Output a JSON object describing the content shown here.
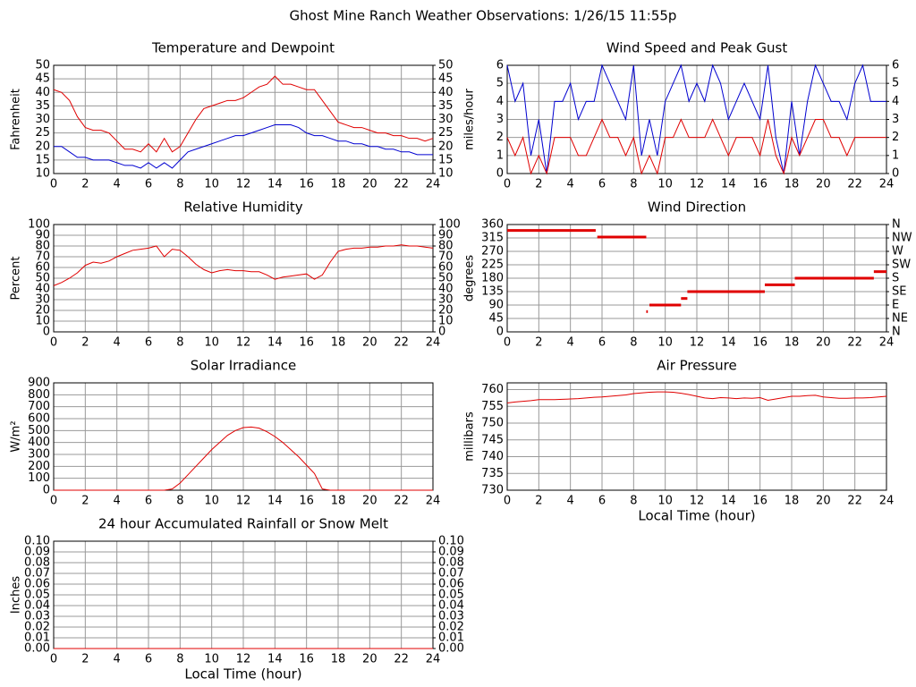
{
  "title": "Ghost Mine Ranch Weather Observations: 1/26/15 11:55p",
  "chart_data": [
    {
      "type": "line",
      "title": "Temperature and Dewpoint",
      "ylabel": "Fahrenheit",
      "grid": true,
      "x": [
        0,
        0.5,
        1,
        1.5,
        2,
        2.5,
        3,
        3.5,
        4,
        4.5,
        5,
        5.5,
        6,
        6.5,
        7,
        7.5,
        8,
        8.5,
        9,
        9.5,
        10,
        10.5,
        11,
        11.5,
        12,
        12.5,
        13,
        13.5,
        14,
        14.5,
        15,
        15.5,
        16,
        16.5,
        17,
        17.5,
        18,
        18.5,
        19,
        19.5,
        20,
        20.5,
        21,
        21.5,
        22,
        22.5,
        23,
        23.5,
        24
      ],
      "series": [
        {
          "color": "#e00000",
          "values": [
            41,
            40,
            37,
            31,
            27,
            26,
            26,
            25,
            22,
            19,
            19,
            18,
            21,
            18,
            23,
            18,
            20,
            25,
            30,
            34,
            35,
            36,
            37,
            37,
            38,
            40,
            42,
            43,
            46,
            43,
            43,
            42,
            41,
            41,
            37,
            33,
            29,
            28,
            27,
            27,
            26,
            25,
            25,
            24,
            24,
            23,
            23,
            22,
            23
          ]
        },
        {
          "color": "#0000d0",
          "values": [
            20,
            20,
            18,
            16,
            16,
            15,
            15,
            15,
            14,
            13,
            13,
            12,
            14,
            12,
            14,
            12,
            15,
            18,
            19,
            20,
            21,
            22,
            23,
            24,
            24,
            25,
            26,
            27,
            28,
            28,
            28,
            27,
            25,
            24,
            24,
            23,
            22,
            22,
            21,
            21,
            20,
            20,
            19,
            19,
            18,
            18,
            17,
            17,
            17
          ]
        }
      ],
      "xlim": [
        0,
        24
      ],
      "xticks": [
        0,
        2,
        4,
        6,
        8,
        10,
        12,
        14,
        16,
        18,
        20,
        22,
        24
      ],
      "ylim": [
        10,
        50
      ],
      "yticks": [
        10,
        15,
        20,
        25,
        30,
        35,
        40,
        45,
        50
      ],
      "y2lim": [
        10,
        50
      ],
      "y2ticks": [
        10,
        15,
        20,
        25,
        30,
        35,
        40,
        45,
        50
      ]
    },
    {
      "type": "line",
      "title": "Wind Speed and Peak Gust",
      "ylabel": "miles/hour",
      "grid": true,
      "x": [
        0,
        0.5,
        1,
        1.5,
        2,
        2.5,
        3,
        3.5,
        4,
        4.5,
        5,
        5.5,
        6,
        6.5,
        7,
        7.5,
        8,
        8.5,
        9,
        9.5,
        10,
        10.5,
        11,
        11.5,
        12,
        12.5,
        13,
        13.5,
        14,
        14.5,
        15,
        15.5,
        16,
        16.5,
        17,
        17.5,
        18,
        18.5,
        19,
        19.5,
        20,
        20.5,
        21,
        21.5,
        22,
        22.5,
        23,
        23.5,
        24
      ],
      "series": [
        {
          "color": "#0000d0",
          "values": [
            6,
            4,
            5,
            1,
            3,
            0,
            4,
            4,
            5,
            3,
            4,
            4,
            6,
            5,
            4,
            3,
            6,
            1,
            3,
            1,
            4,
            5,
            6,
            4,
            5,
            4,
            6,
            5,
            3,
            4,
            5,
            4,
            3,
            6,
            2,
            0,
            4,
            1,
            4,
            6,
            5,
            4,
            4,
            3,
            5,
            6,
            4,
            4,
            4
          ]
        },
        {
          "color": "#e00000",
          "values": [
            2,
            1,
            2,
            0,
            1,
            0,
            2,
            2,
            2,
            1,
            1,
            2,
            3,
            2,
            2,
            1,
            2,
            0,
            1,
            0,
            2,
            2,
            3,
            2,
            2,
            2,
            3,
            2,
            1,
            2,
            2,
            2,
            1,
            3,
            1,
            0,
            2,
            1,
            2,
            3,
            3,
            2,
            2,
            1,
            2,
            2,
            2,
            2,
            2
          ]
        }
      ],
      "xlim": [
        0,
        24
      ],
      "xticks": [
        0,
        2,
        4,
        6,
        8,
        10,
        12,
        14,
        16,
        18,
        20,
        22,
        24
      ],
      "ylim": [
        0,
        6
      ],
      "yticks": [
        0,
        1,
        2,
        3,
        4,
        5,
        6
      ],
      "y2lim": [
        0,
        6
      ],
      "y2ticks": [
        0,
        1,
        2,
        3,
        4,
        5,
        6
      ]
    },
    {
      "type": "line",
      "title": "Relative Humidity",
      "ylabel": "Percent",
      "grid": true,
      "x": [
        0,
        0.5,
        1,
        1.5,
        2,
        2.5,
        3,
        3.5,
        4,
        4.5,
        5,
        5.5,
        6,
        6.5,
        7,
        7.5,
        8,
        8.5,
        9,
        9.5,
        10,
        10.5,
        11,
        11.5,
        12,
        12.5,
        13,
        13.5,
        14,
        14.5,
        15,
        15.5,
        16,
        16.5,
        17,
        17.5,
        18,
        18.5,
        19,
        19.5,
        20,
        20.5,
        21,
        21.5,
        22,
        22.5,
        23,
        23.5,
        24
      ],
      "series": [
        {
          "color": "#e00000",
          "values": [
            43,
            46,
            50,
            55,
            62,
            65,
            64,
            66,
            70,
            73,
            76,
            77,
            78,
            80,
            70,
            77,
            76,
            70,
            63,
            58,
            55,
            57,
            58,
            57,
            57,
            56,
            56,
            53,
            49,
            51,
            52,
            53,
            54,
            49,
            53,
            65,
            75,
            77,
            78,
            78,
            79,
            79,
            80,
            80,
            81,
            80,
            80,
            79,
            78
          ]
        }
      ],
      "xlim": [
        0,
        24
      ],
      "xticks": [
        0,
        2,
        4,
        6,
        8,
        10,
        12,
        14,
        16,
        18,
        20,
        22,
        24
      ],
      "ylim": [
        0,
        100
      ],
      "yticks": [
        0,
        10,
        20,
        30,
        40,
        50,
        60,
        70,
        80,
        90,
        100
      ],
      "y2lim": [
        0,
        100
      ],
      "y2ticks": [
        0,
        10,
        20,
        30,
        40,
        50,
        60,
        70,
        80,
        90,
        100
      ]
    },
    {
      "type": "segments",
      "title": "Wind Direction",
      "ylabel": "degrees",
      "grid": true,
      "series": [
        {
          "color": "#e00000",
          "x_start": [
            0,
            5.7,
            8.8,
            9.0,
            11.0,
            11.4,
            16.3,
            18.2,
            23.2
          ],
          "x_end": [
            5.6,
            8.8,
            8.9,
            11.0,
            11.4,
            16.3,
            18.2,
            23.2,
            24
          ],
          "values": [
            340,
            318,
            68,
            90,
            112,
            135,
            158,
            180,
            202
          ]
        }
      ],
      "xlim": [
        0,
        24
      ],
      "xticks": [
        0,
        2,
        4,
        6,
        8,
        10,
        12,
        14,
        16,
        18,
        20,
        22,
        24
      ],
      "ylim": [
        0,
        360
      ],
      "yticks": [
        0,
        45,
        90,
        135,
        180,
        225,
        270,
        315,
        360
      ],
      "y2lim": [
        0,
        360
      ],
      "y2ticks": [
        {
          "value": 360,
          "label": "N"
        },
        {
          "value": 315,
          "label": "NW"
        },
        {
          "value": 270,
          "label": "W"
        },
        {
          "value": 225,
          "label": "SW"
        },
        {
          "value": 180,
          "label": "S"
        },
        {
          "value": 135,
          "label": "SE"
        },
        {
          "value": 90,
          "label": "E"
        },
        {
          "value": 45,
          "label": "NE"
        },
        {
          "value": 0,
          "label": "N"
        }
      ]
    },
    {
      "type": "line",
      "title": "Solar Irradiance",
      "ylabel": "W/m²",
      "grid": true,
      "x": [
        0,
        0.5,
        1,
        1.5,
        2,
        2.5,
        3,
        3.5,
        4,
        4.5,
        5,
        5.5,
        6,
        6.5,
        7,
        7.5,
        8,
        8.5,
        9,
        9.5,
        10,
        10.5,
        11,
        11.5,
        12,
        12.5,
        13,
        13.5,
        14,
        14.5,
        15,
        15.5,
        16,
        16.5,
        17,
        17.5,
        18,
        18.5,
        19,
        19.5,
        20,
        20.5,
        21,
        21.5,
        22,
        22.5,
        23,
        23.5,
        24
      ],
      "series": [
        {
          "color": "#e00000",
          "values": [
            0,
            0,
            0,
            0,
            0,
            0,
            0,
            0,
            0,
            0,
            0,
            0,
            0,
            0,
            0,
            10,
            60,
            130,
            200,
            270,
            340,
            400,
            460,
            500,
            525,
            530,
            520,
            490,
            450,
            400,
            340,
            280,
            210,
            140,
            10,
            0,
            0,
            0,
            0,
            0,
            0,
            0,
            0,
            0,
            0,
            0,
            0,
            0,
            0
          ]
        }
      ],
      "xlim": [
        0,
        24
      ],
      "xticks": [
        0,
        2,
        4,
        6,
        8,
        10,
        12,
        14,
        16,
        18,
        20,
        22,
        24
      ],
      "ylim": [
        0,
        900
      ],
      "yticks": [
        0,
        100,
        200,
        300,
        400,
        500,
        600,
        700,
        800,
        900
      ]
    },
    {
      "type": "line",
      "title": "Air Pressure",
      "ylabel": "millibars",
      "xlabel": "Local Time (hour)",
      "grid": true,
      "x": [
        0,
        0.5,
        1,
        1.5,
        2,
        2.5,
        3,
        3.5,
        4,
        4.5,
        5,
        5.5,
        6,
        6.5,
        7,
        7.5,
        8,
        8.5,
        9,
        9.5,
        10,
        10.5,
        11,
        11.5,
        12,
        12.5,
        13,
        13.5,
        14,
        14.5,
        15,
        15.5,
        16,
        16.5,
        17,
        17.5,
        18,
        18.5,
        19,
        19.5,
        20,
        20.5,
        21,
        21.5,
        22,
        22.5,
        23,
        23.5,
        24
      ],
      "series": [
        {
          "color": "#e00000",
          "values": [
            756,
            756.3,
            756.5,
            756.7,
            757,
            757,
            757,
            757.1,
            757.2,
            757.3,
            757.5,
            757.7,
            757.8,
            758,
            758.2,
            758.4,
            758.8,
            759,
            759.2,
            759.3,
            759.3,
            759.2,
            758.9,
            758.5,
            758,
            757.5,
            757.3,
            757.6,
            757.5,
            757.3,
            757.5,
            757.4,
            757.6,
            756.8,
            757.2,
            757.6,
            758,
            758,
            758.2,
            758.3,
            757.8,
            757.6,
            757.4,
            757.4,
            757.5,
            757.5,
            757.6,
            757.8,
            758
          ]
        }
      ],
      "xlim": [
        0,
        24
      ],
      "xticks": [
        0,
        2,
        4,
        6,
        8,
        10,
        12,
        14,
        16,
        18,
        20,
        22,
        24
      ],
      "ylim": [
        730,
        762
      ],
      "yticks": [
        730,
        735,
        740,
        745,
        750,
        755,
        760
      ]
    },
    {
      "type": "line",
      "title": "24 hour Accumulated Rainfall or Snow Melt",
      "ylabel": "Inches",
      "xlabel": "Local Time (hour)",
      "grid": true,
      "x": [
        0,
        24
      ],
      "series": [
        {
          "color": "#e00000",
          "values": [
            0,
            0
          ]
        }
      ],
      "xlim": [
        0,
        24
      ],
      "xticks": [
        0,
        2,
        4,
        6,
        8,
        10,
        12,
        14,
        16,
        18,
        20,
        22,
        24
      ],
      "ylim": [
        0,
        0.1
      ],
      "yticks": [
        {
          "value": 0,
          "label": "0.00"
        },
        {
          "value": 0.01,
          "label": "0.01"
        },
        {
          "value": 0.02,
          "label": "0.02"
        },
        {
          "value": 0.03,
          "label": "0.03"
        },
        {
          "value": 0.04,
          "label": "0.04"
        },
        {
          "value": 0.05,
          "label": "0.05"
        },
        {
          "value": 0.06,
          "label": "0.06"
        },
        {
          "value": 0.07,
          "label": "0.07"
        },
        {
          "value": 0.08,
          "label": "0.08"
        },
        {
          "value": 0.09,
          "label": "0.09"
        },
        {
          "value": 0.1,
          "label": "0.10"
        }
      ],
      "y2lim": [
        0,
        0.1
      ],
      "y2ticks": [
        {
          "value": 0,
          "label": "0.00"
        },
        {
          "value": 0.01,
          "label": "0.01"
        },
        {
          "value": 0.02,
          "label": "0.02"
        },
        {
          "value": 0.03,
          "label": "0.03"
        },
        {
          "value": 0.04,
          "label": "0.04"
        },
        {
          "value": 0.05,
          "label": "0.05"
        },
        {
          "value": 0.06,
          "label": "0.06"
        },
        {
          "value": 0.07,
          "label": "0.07"
        },
        {
          "value": 0.08,
          "label": "0.08"
        },
        {
          "value": 0.09,
          "label": "0.09"
        },
        {
          "value": 0.1,
          "label": "0.10"
        }
      ]
    }
  ]
}
